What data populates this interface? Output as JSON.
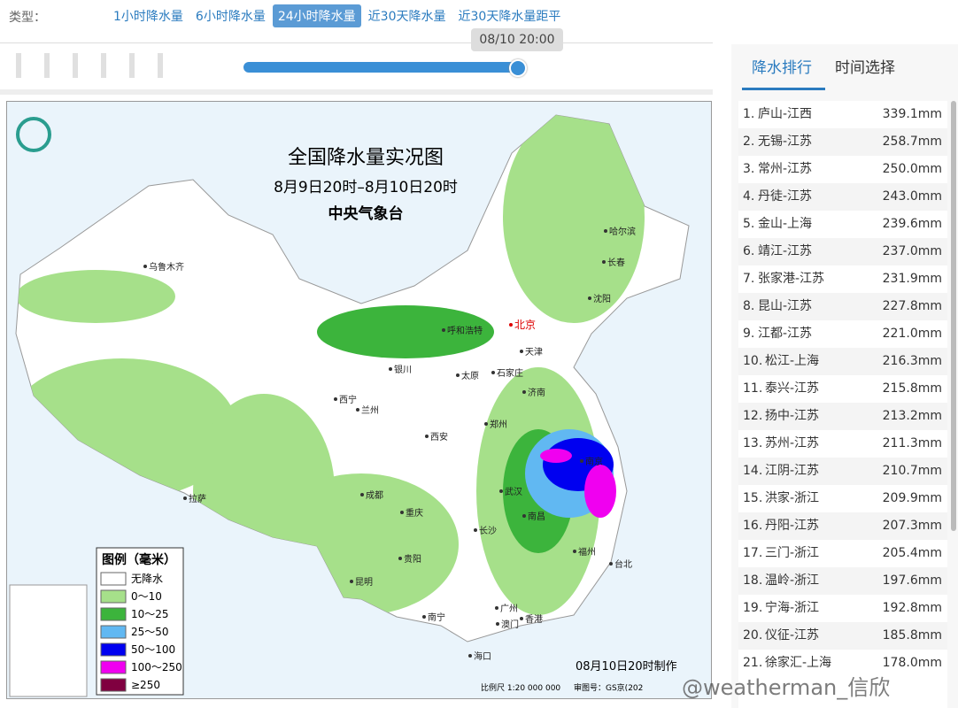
{
  "header": {
    "type_label": "类型：",
    "tabs": [
      "1小时降水量",
      "6小时降水量",
      "24小时降水量",
      "近30天降水量",
      "近30天降水量距平"
    ],
    "active_tab": 2,
    "slider_time": "08/10 20:00"
  },
  "map": {
    "title": "全国降水量实况图",
    "period": "8月9日20时–8月10日20时",
    "agency": "中央气象台",
    "legend_title": "图例（毫米）",
    "legend": [
      {
        "label": "无降水",
        "color": "#ffffff"
      },
      {
        "label": "0～10",
        "color": "#a6e08a"
      },
      {
        "label": "10～25",
        "color": "#3cb43c"
      },
      {
        "label": "25～50",
        "color": "#61b8f2"
      },
      {
        "label": "50～100",
        "color": "#0000f0"
      },
      {
        "label": "100～250",
        "color": "#f000f0"
      },
      {
        "label": "≥250",
        "color": "#800040"
      }
    ],
    "cities": [
      "乌鲁木齐",
      "哈尔滨",
      "长春",
      "沈阳",
      "呼和浩特",
      "北京",
      "天津",
      "银川",
      "太原",
      "石家庄",
      "西宁",
      "兰州",
      "济南",
      "西安",
      "郑州",
      "成都",
      "武汉",
      "重庆",
      "南京",
      "长沙",
      "南昌",
      "福州",
      "贵阳",
      "台北",
      "昆明",
      "南宁",
      "广州",
      "澳门",
      "香港",
      "拉萨",
      "海口"
    ],
    "made_time": "08月10日20时制作",
    "scale": "比例尺 1:20 000 000",
    "approval": "审图号：GS京(202"
  },
  "panel": {
    "tabs": [
      "降水排行",
      "时间选择"
    ],
    "ranking": [
      {
        "rank": "1.",
        "name": "庐山-江西",
        "value": "339.1mm"
      },
      {
        "rank": "2.",
        "name": "无锡-江苏",
        "value": "258.7mm"
      },
      {
        "rank": "3.",
        "name": "常州-江苏",
        "value": "250.0mm"
      },
      {
        "rank": "4.",
        "name": "丹徒-江苏",
        "value": "243.0mm"
      },
      {
        "rank": "5.",
        "name": "金山-上海",
        "value": "239.6mm"
      },
      {
        "rank": "6.",
        "name": "靖江-江苏",
        "value": "237.0mm"
      },
      {
        "rank": "7.",
        "name": "张家港-江苏",
        "value": "231.9mm"
      },
      {
        "rank": "8.",
        "name": "昆山-江苏",
        "value": "227.8mm"
      },
      {
        "rank": "9.",
        "name": "江都-江苏",
        "value": "221.0mm"
      },
      {
        "rank": "10.",
        "name": "松江-上海",
        "value": "216.3mm"
      },
      {
        "rank": "11.",
        "name": "泰兴-江苏",
        "value": "215.8mm"
      },
      {
        "rank": "12.",
        "name": "扬中-江苏",
        "value": "213.2mm"
      },
      {
        "rank": "13.",
        "name": "苏州-江苏",
        "value": "211.3mm"
      },
      {
        "rank": "14.",
        "name": "江阴-江苏",
        "value": "210.7mm"
      },
      {
        "rank": "15.",
        "name": "洪家-浙江",
        "value": "209.9mm"
      },
      {
        "rank": "16.",
        "name": "丹阳-江苏",
        "value": "207.3mm"
      },
      {
        "rank": "17.",
        "name": "三门-浙江",
        "value": "205.4mm"
      },
      {
        "rank": "18.",
        "name": "温岭-浙江",
        "value": "197.6mm"
      },
      {
        "rank": "19.",
        "name": "宁海-浙江",
        "value": "192.8mm"
      },
      {
        "rank": "20.",
        "name": "仪征-江苏",
        "value": "185.8mm"
      },
      {
        "rank": "21.",
        "name": "徐家汇-上海",
        "value": "178.0mm"
      }
    ]
  },
  "watermark": "@weatherman_信欣"
}
